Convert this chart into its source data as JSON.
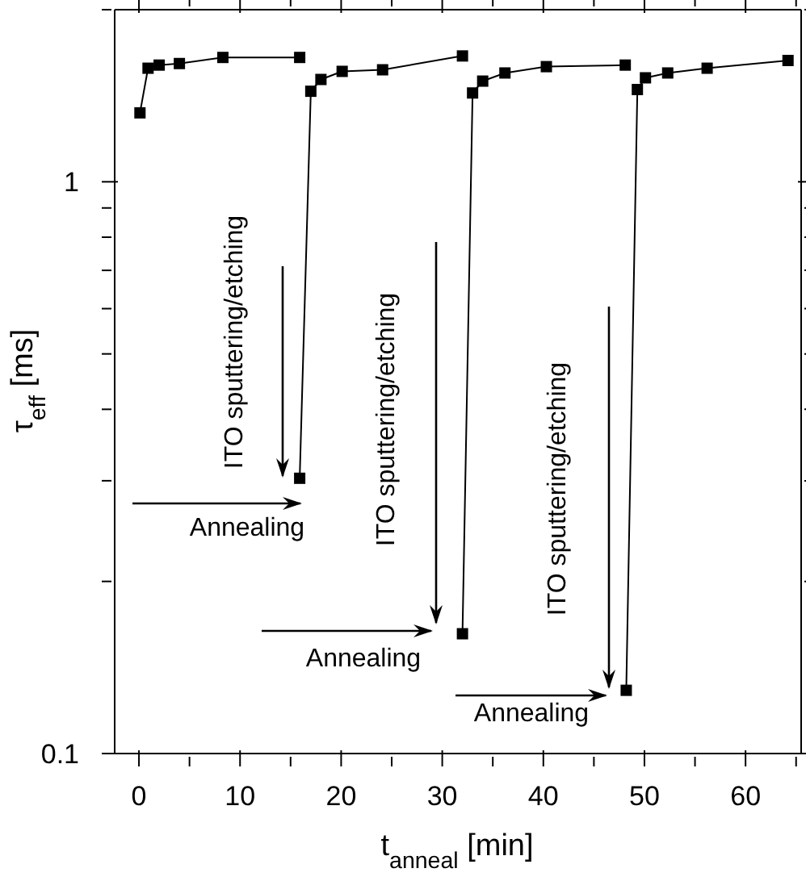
{
  "chart_data": {
    "type": "line",
    "xlabel": "t$_{anneal}$ [min]",
    "ylabel": "τ$_{eff}$ [ms]",
    "log": "y",
    "marker": "square",
    "line_style": "solid",
    "xlim": [
      -2.4,
      65.5
    ],
    "xticks": [
      0,
      {
        "value": 5,
        "label": null
      },
      10,
      {
        "value": 15,
        "label": null
      },
      20,
      {
        "value": 25,
        "label": null
      },
      30,
      {
        "value": 35,
        "label": null
      },
      40,
      {
        "value": 45,
        "label": null
      },
      50,
      {
        "value": 55,
        "label": null
      },
      60,
      {
        "value": 65,
        "label": null
      }
    ],
    "ylim": [
      0.1,
      2
    ],
    "yticks": [
      0.1,
      {
        "value": 0.2,
        "label": null
      },
      {
        "value": 0.3,
        "label": null
      },
      {
        "value": 0.4,
        "label": null
      },
      {
        "value": 0.5,
        "label": null
      },
      {
        "value": 0.6,
        "label": null
      },
      {
        "value": 0.7,
        "label": null
      },
      {
        "value": 0.8,
        "label": null
      },
      {
        "value": 0.9,
        "label": null
      },
      1,
      {
        "value": 2,
        "label": null
      }
    ],
    "series": [
      {
        "color": "#000000",
        "x": [
          0.1,
          0.9,
          2.0,
          4.0,
          8.3,
          15.9
        ],
        "values": [
          1.32,
          1.58,
          1.6,
          1.61,
          1.65,
          1.65
        ]
      },
      {
        "color": "#000000",
        "x": [
          15.9,
          17.0,
          18.0,
          20.1,
          24.1,
          32.0
        ],
        "values": [
          0.303,
          1.44,
          1.51,
          1.56,
          1.57,
          1.66
        ]
      },
      {
        "color": "#000000",
        "x": [
          32.0,
          33.0,
          34.0,
          36.2,
          40.3,
          48.1
        ],
        "values": [
          0.162,
          1.43,
          1.5,
          1.55,
          1.59,
          1.6
        ]
      },
      {
        "color": "#000000",
        "x": [
          48.2,
          49.3,
          50.1,
          52.3,
          56.2,
          64.2
        ],
        "values": [
          0.129,
          1.45,
          1.52,
          1.55,
          1.58,
          1.63
        ]
      }
    ],
    "annotations": [
      "ITO sputtering/etching",
      "ITO sputtering/etching",
      "ITO sputtering/etching",
      "Annealing",
      "Annealing",
      "Annealing"
    ]
  }
}
